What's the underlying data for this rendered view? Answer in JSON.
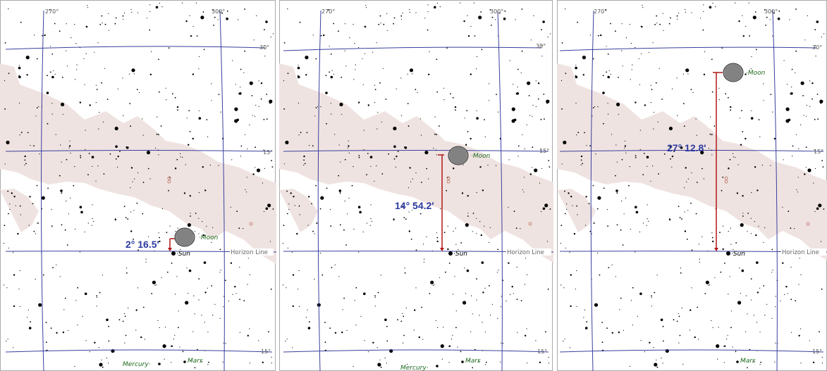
{
  "panels": [
    {
      "id": "panel-1",
      "ra_labels": [
        "270°",
        "300°"
      ],
      "dec_labels": [
        "30°",
        "15°"
      ],
      "horizon_label": "Horizon Line",
      "bottom_label": "15°",
      "sun_label": "Sun",
      "moon_label": "Moon",
      "mercury_label": "Mercury",
      "mars_label": "Mars",
      "separation": "2° 16.5'"
    },
    {
      "id": "panel-2",
      "ra_labels": [
        "270°",
        "300°"
      ],
      "dec_labels": [
        "30°",
        "15°"
      ],
      "horizon_label": "Horizon Line",
      "bottom_label": "15°",
      "sun_label": "Sun",
      "moon_label": "Moon",
      "mercury_label": "Mercury",
      "mars_label": "Mars",
      "separation": "14° 54.2'"
    },
    {
      "id": "panel-3",
      "ra_labels": [
        "270°",
        "300°"
      ],
      "dec_labels": [
        "30°",
        "15°"
      ],
      "horizon_label": "Horizon Line",
      "bottom_label": "15°",
      "sun_label": "Sun",
      "moon_label": "Moon",
      "mars_label": "Mars",
      "separation": "27° 12.8'"
    }
  ],
  "colors": {
    "grid": "#3a3f9e",
    "milky_way": "#efe3e1",
    "measure_line": "#b01818",
    "measure_text": "#2d3aa0",
    "planet_label": "#1e6a1e",
    "moon_fill": "#9a9a9a"
  }
}
